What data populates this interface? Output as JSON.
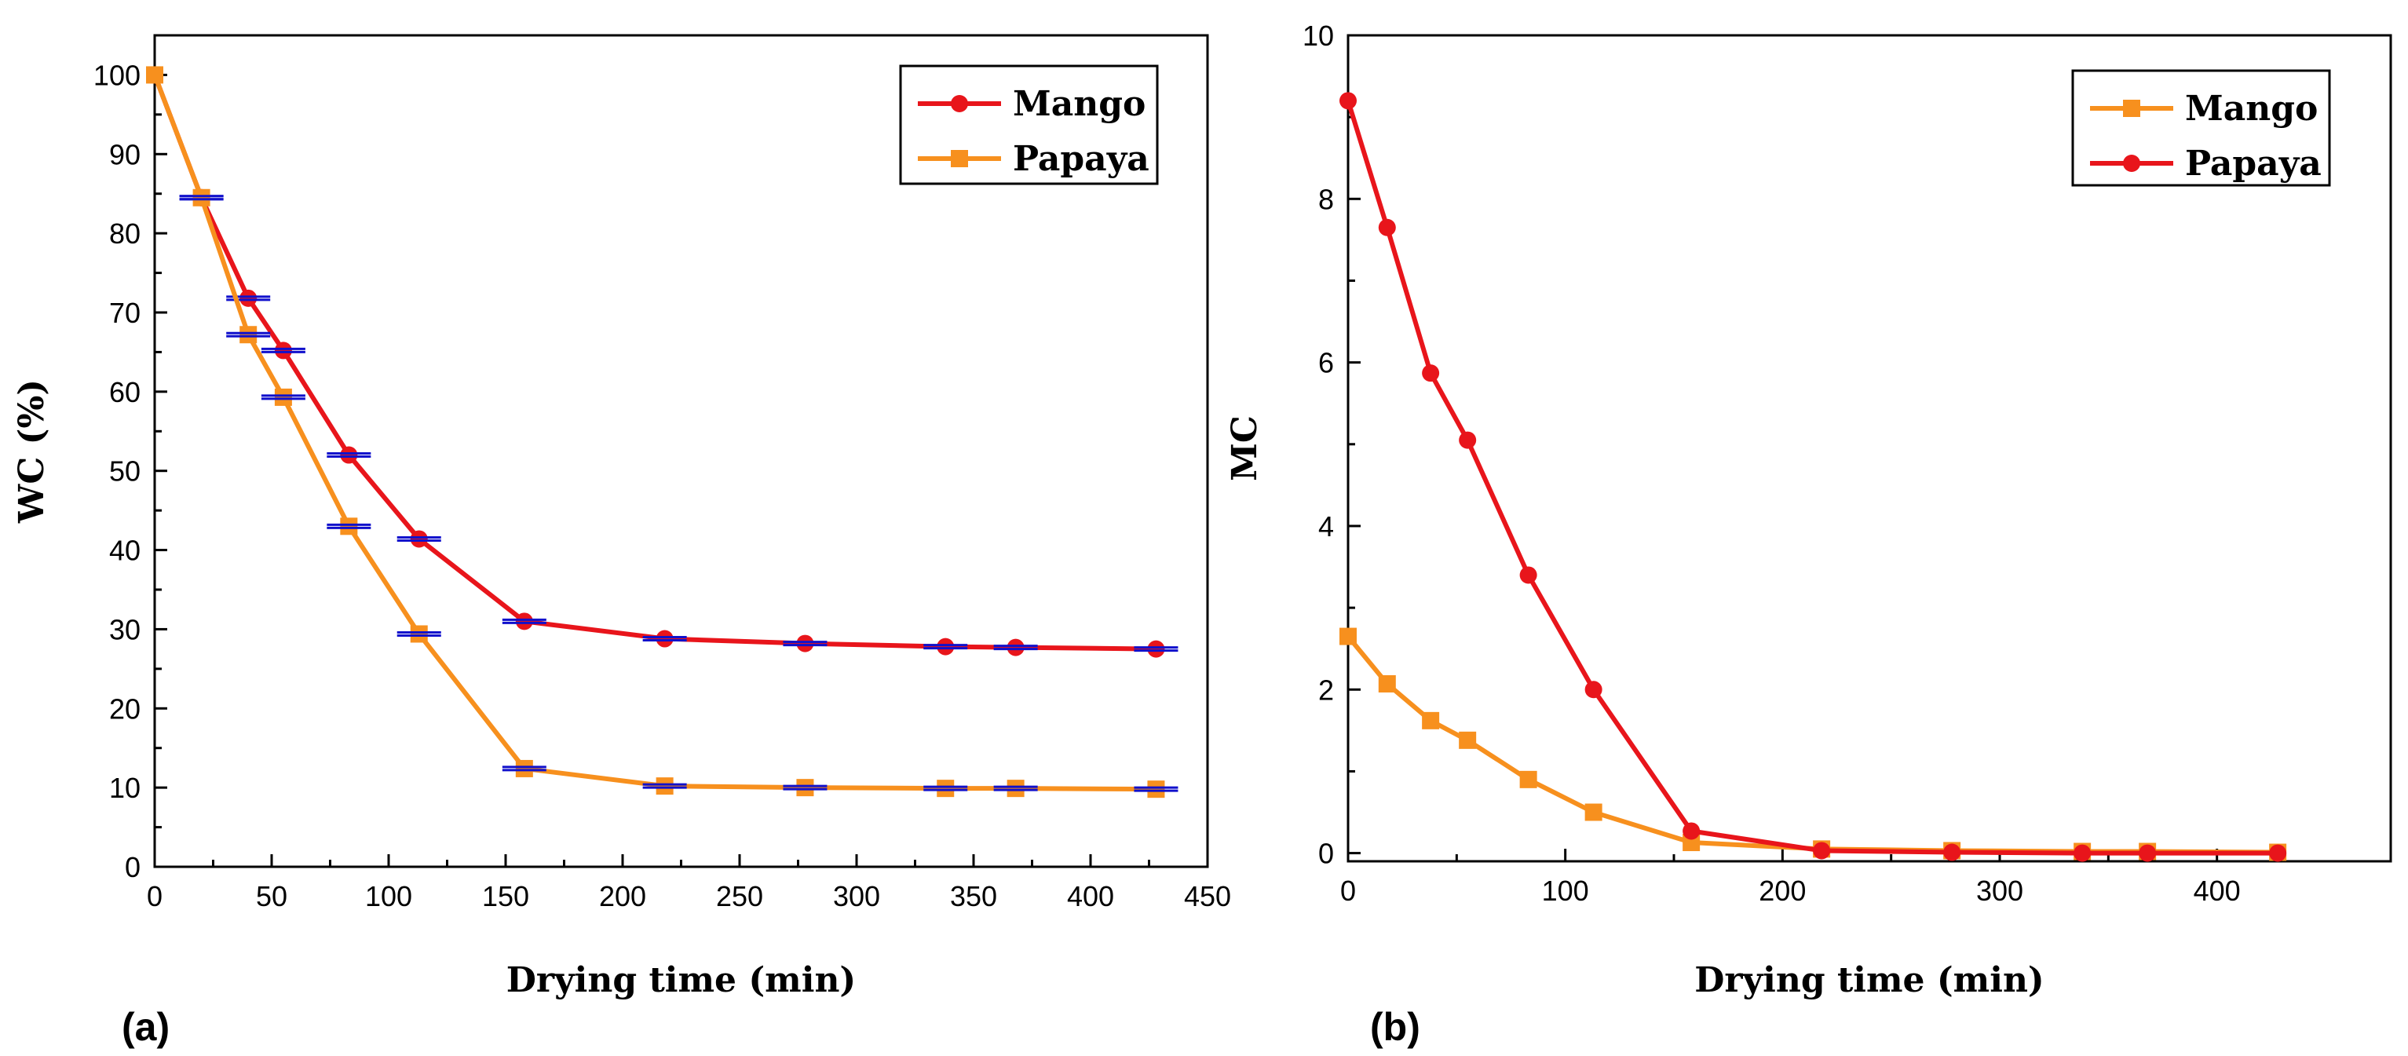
{
  "chart_data": [
    {
      "type": "line",
      "panel_label": "(a)",
      "xlabel": "Drying time (min)",
      "ylabel": "WC (%)",
      "xlim": [
        0,
        450
      ],
      "ylim": [
        0,
        105
      ],
      "xticks": [
        0,
        50,
        100,
        150,
        200,
        250,
        300,
        350,
        400,
        450
      ],
      "yticks": [
        0,
        10,
        20,
        30,
        40,
        50,
        60,
        70,
        80,
        90,
        100
      ],
      "legend_position": "top-right",
      "grid": false,
      "error_bar_color": "#1010cc",
      "series": [
        {
          "name": "Mango",
          "marker": "circle",
          "color": "#e8151b",
          "x": [
            0,
            20,
            40,
            55,
            83,
            113,
            158,
            218,
            278,
            338,
            368,
            428
          ],
          "y": [
            100,
            84.5,
            71.8,
            65.2,
            52,
            41.4,
            31,
            28.8,
            28.2,
            27.8,
            27.7,
            27.5
          ]
        },
        {
          "name": "Papaya",
          "marker": "square",
          "color": "#f7901e",
          "x": [
            0,
            20,
            40,
            55,
            83,
            113,
            158,
            218,
            278,
            338,
            368,
            428
          ],
          "y": [
            100,
            84.5,
            67.2,
            59.3,
            43,
            29.4,
            12.4,
            10.2,
            10,
            9.9,
            9.9,
            9.8
          ]
        }
      ]
    },
    {
      "type": "line",
      "panel_label": "(b)",
      "xlabel": "Drying time (min)",
      "ylabel": "MC",
      "xlim": [
        0,
        480
      ],
      "ylim": [
        -0.1,
        10
      ],
      "xticks": [
        0,
        100,
        200,
        300,
        400
      ],
      "yticks": [
        0,
        2,
        4,
        6,
        8,
        10
      ],
      "legend_position": "top-right",
      "grid": false,
      "series": [
        {
          "name": "Mango",
          "marker": "square",
          "color": "#f7901e",
          "x": [
            0,
            18,
            38,
            55,
            83,
            113,
            158,
            218,
            278,
            338,
            368,
            428
          ],
          "y": [
            2.65,
            2.07,
            1.62,
            1.38,
            0.9,
            0.5,
            0.13,
            0.05,
            0.03,
            0.02,
            0.02,
            0.01
          ]
        },
        {
          "name": "Papaya",
          "marker": "circle",
          "color": "#e8151b",
          "x": [
            0,
            18,
            38,
            55,
            83,
            113,
            158,
            218,
            278,
            338,
            368,
            428
          ],
          "y": [
            9.2,
            7.65,
            5.87,
            5.05,
            3.4,
            2.0,
            0.27,
            0.03,
            0.01,
            0.0,
            0.0,
            0.0
          ]
        }
      ]
    }
  ]
}
